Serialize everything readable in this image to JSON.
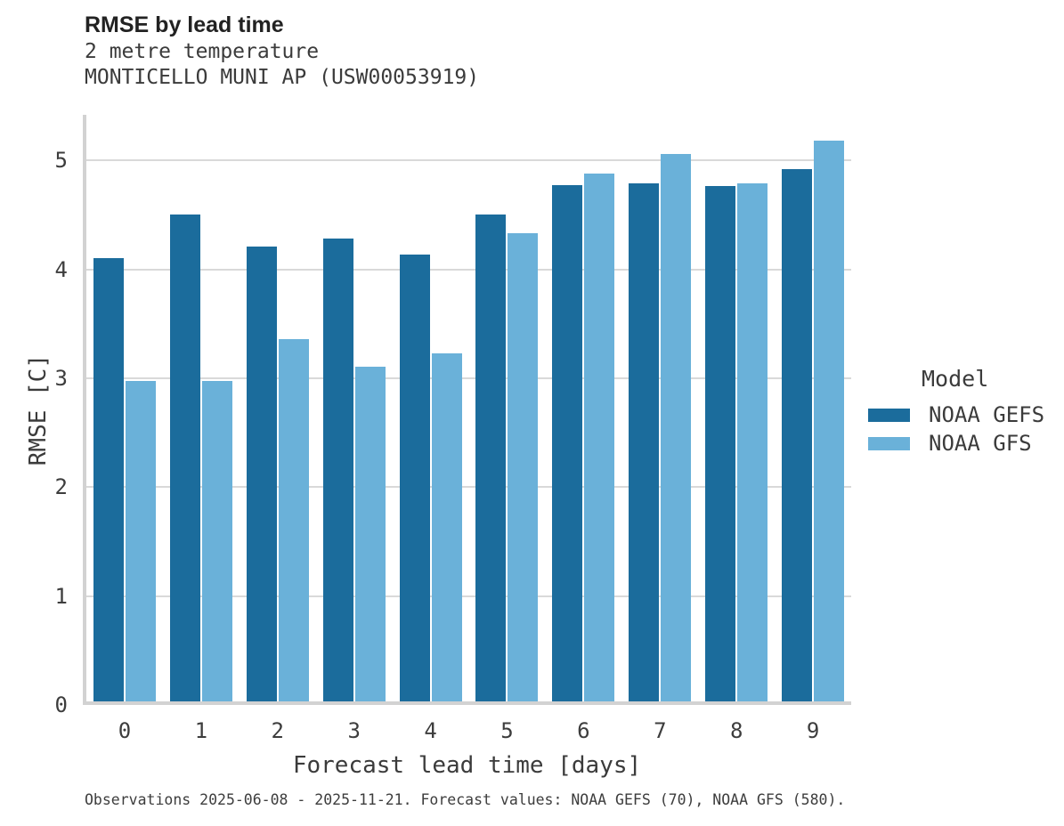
{
  "header": {
    "title": "RMSE by lead time",
    "subtitle_line1": "2 metre temperature",
    "subtitle_line2": "MONTICELLO MUNI AP (USW00053919)"
  },
  "axes": {
    "x_label": "Forecast lead time [days]",
    "y_label": "RMSE [C]"
  },
  "legend": {
    "title": "Model",
    "entries": [
      {
        "label": "NOAA GEFS",
        "color": "#1b6c9c"
      },
      {
        "label": "NOAA GFS",
        "color": "#6ab1d9"
      }
    ]
  },
  "footer": {
    "caption": "Observations 2025-06-08 - 2025-11-21. Forecast values: NOAA GEFS (70), NOAA GFS (580)."
  },
  "colors": {
    "gefs_bar": "#1b6c9c",
    "gfs_bar": "#6ab1d9",
    "gridline": "#d9d9d9",
    "axis_spine": "#d2d2d2"
  },
  "chart_data": {
    "type": "bar",
    "title": "RMSE by lead time",
    "subtitle": "2 metre temperature — MONTICELLO MUNI AP (USW00053919)",
    "xlabel": "Forecast lead time [days]",
    "ylabel": "RMSE [C]",
    "categories": [
      "0",
      "1",
      "2",
      "3",
      "4",
      "5",
      "6",
      "7",
      "8",
      "9"
    ],
    "series": [
      {
        "name": "NOAA GEFS",
        "color": "#1b6c9c",
        "values": [
          4.07,
          4.47,
          4.18,
          4.25,
          4.1,
          4.47,
          4.74,
          4.76,
          4.73,
          4.89
        ]
      },
      {
        "name": "NOAA GFS",
        "color": "#6ab1d9",
        "values": [
          2.94,
          2.94,
          3.33,
          3.07,
          3.2,
          4.3,
          4.85,
          5.03,
          4.76,
          5.15
        ]
      }
    ],
    "ylim": [
      0,
      5.42
    ],
    "y_ticks": [
      0,
      1,
      2,
      3,
      4,
      5
    ],
    "grid": true,
    "legend_title": "Model",
    "legend_position": "right"
  }
}
